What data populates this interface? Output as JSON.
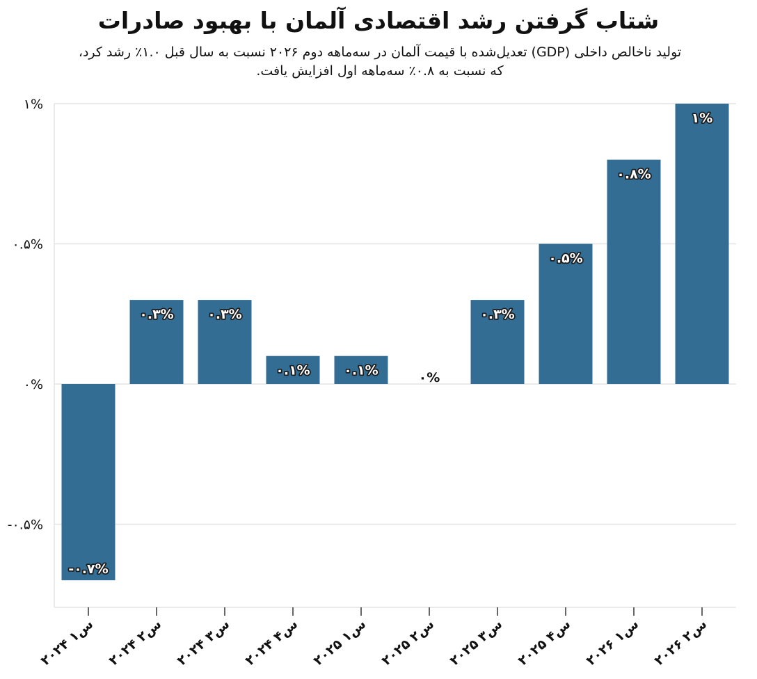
{
  "chart_data": {
    "type": "bar",
    "title": "شتاب گرفتن رشد اقتصادی آلمان با بهبود صادرات",
    "subtitle_line1": "تولید ناخالص داخلی (GDP) تعدیل‌شده با قیمت آلمان در سه‌ماهه دوم ۲۰۲۶ نسبت به سال قبل ۱.۰٪ رشد کرد،",
    "subtitle_line2": "که نسبت به ۰.۸٪ سه‌ماهه اول افزایش یافت.",
    "categories": [
      "س۱ ۲۰۲۴",
      "س۲ ۲۰۲۴",
      "س۳ ۲۰۲۴",
      "س۴ ۲۰۲۴",
      "س۱ ۲۰۲۵",
      "س۲ ۲۰۲۵",
      "س۳ ۲۰۲۵",
      "س۴ ۲۰۲۵",
      "س۱ ۲۰۲۶",
      "س۲ ۲۰۲۶"
    ],
    "values": [
      -0.7,
      0.3,
      0.3,
      0.1,
      0.1,
      0,
      0.3,
      0.5,
      0.8,
      1.0
    ],
    "data_labels": [
      "-۰.۷%",
      "۰.۳%",
      "۰.۳%",
      "۰.۱%",
      "۰.۱%",
      "۰%",
      "۰.۳%",
      "۰.۵%",
      "۰.۸%",
      "۱%"
    ],
    "yticks": [
      1,
      0.5,
      0,
      -0.5
    ],
    "ytick_labels": [
      "۱%",
      "۰.۵%",
      "۰%",
      "-۰.۵%"
    ],
    "ylim": [
      -0.8,
      1.0
    ],
    "xlabel": "",
    "ylabel": "",
    "grid": true,
    "legend": "none",
    "bar_color": "#336d94",
    "grid_color": "#e4e4e4",
    "label_color": "#ffffff",
    "label_outline_color": "#1c1c1c",
    "zero_label_color": "#111111"
  }
}
